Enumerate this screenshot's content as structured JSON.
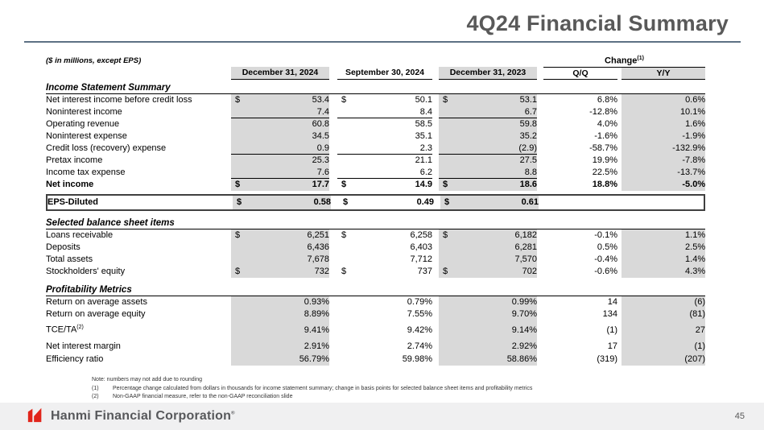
{
  "title": "4Q24 Financial Summary",
  "units_note": "($ in millions, except EPS)",
  "change": {
    "label": "Change",
    "sup": "(1)"
  },
  "columns": [
    "December 31, 2024",
    "September 30, 2024",
    "December 31, 2023",
    "Q/Q",
    "Y/Y"
  ],
  "shade_color": "#d9d9d9",
  "accent_rule_color": "#5d7184",
  "logo_color": "#e1251b",
  "sections": [
    {
      "id": "income",
      "header": "Income Statement Summary",
      "rows": [
        {
          "label": "Net interest income before credit loss",
          "cells": [
            [
              "$",
              "53.4"
            ],
            [
              "$",
              "50.1"
            ],
            [
              "$",
              "53.1"
            ],
            [
              "",
              "6.8%"
            ],
            [
              "",
              "0.6%"
            ]
          ]
        },
        {
          "label": "Noninterest income",
          "sum": true,
          "cells": [
            [
              "",
              "7.4"
            ],
            [
              "",
              "8.4"
            ],
            [
              "",
              "6.7"
            ],
            [
              "",
              "-12.8%"
            ],
            [
              "",
              "10.1%"
            ]
          ]
        },
        {
          "label": "Operating revenue",
          "ind": true,
          "cells": [
            [
              "",
              "60.8"
            ],
            [
              "",
              "58.5"
            ],
            [
              "",
              "59.8"
            ],
            [
              "",
              "4.0%"
            ],
            [
              "",
              "1.6%"
            ]
          ]
        },
        {
          "label": "Noninterest expense",
          "cells": [
            [
              "",
              "34.5"
            ],
            [
              "",
              "35.1"
            ],
            [
              "",
              "35.2"
            ],
            [
              "",
              "-1.6%"
            ],
            [
              "",
              "-1.9%"
            ]
          ]
        },
        {
          "label": "Credit loss (recovery) expense",
          "sum": true,
          "cells": [
            [
              "",
              "0.9"
            ],
            [
              "",
              "2.3"
            ],
            [
              "",
              "(2.9)"
            ],
            [
              "",
              "-58.7%"
            ],
            [
              "",
              "-132.9%"
            ]
          ]
        },
        {
          "label": "Pretax income",
          "ind": true,
          "cells": [
            [
              "",
              "25.3"
            ],
            [
              "",
              "21.1"
            ],
            [
              "",
              "27.5"
            ],
            [
              "",
              "19.9%"
            ],
            [
              "",
              "-7.8%"
            ]
          ]
        },
        {
          "label": "Income tax expense",
          "sum": true,
          "cells": [
            [
              "",
              "7.6"
            ],
            [
              "",
              "6.2"
            ],
            [
              "",
              "8.8"
            ],
            [
              "",
              "22.5%"
            ],
            [
              "",
              "-13.7%"
            ]
          ]
        },
        {
          "label": "Net income",
          "ind": true,
          "b": true,
          "cells": [
            [
              "$",
              "17.7"
            ],
            [
              "$",
              "14.9"
            ],
            [
              "$",
              "18.6"
            ],
            [
              "",
              "18.8%"
            ],
            [
              "",
              "-5.0%"
            ]
          ]
        }
      ]
    },
    {
      "id": "eps",
      "box": true,
      "rows": [
        {
          "label": "EPS-Diluted",
          "b": true,
          "cells": [
            [
              "$",
              "0.58"
            ],
            [
              "$",
              "0.49"
            ],
            [
              "$",
              "0.61"
            ],
            [
              "",
              ""
            ],
            [
              "",
              ""
            ]
          ]
        }
      ]
    },
    {
      "id": "balance",
      "header": "Selected balance sheet items",
      "rows": [
        {
          "label": "Loans receivable",
          "cells": [
            [
              "$",
              "6,251"
            ],
            [
              "$",
              "6,258"
            ],
            [
              "$",
              "6,182"
            ],
            [
              "",
              "-0.1%"
            ],
            [
              "",
              "1.1%"
            ]
          ]
        },
        {
          "label": "Deposits",
          "cells": [
            [
              "",
              "6,436"
            ],
            [
              "",
              "6,403"
            ],
            [
              "",
              "6,281"
            ],
            [
              "",
              "0.5%"
            ],
            [
              "",
              "2.5%"
            ]
          ]
        },
        {
          "label": "Total assets",
          "cells": [
            [
              "",
              "7,678"
            ],
            [
              "",
              "7,712"
            ],
            [
              "",
              "7,570"
            ],
            [
              "",
              "-0.4%"
            ],
            [
              "",
              "1.4%"
            ]
          ]
        },
        {
          "label": "Stockholders' equity",
          "cells": [
            [
              "$",
              "732"
            ],
            [
              "$",
              "737"
            ],
            [
              "$",
              "702"
            ],
            [
              "",
              "-0.6%"
            ],
            [
              "",
              "4.3%"
            ]
          ]
        }
      ]
    },
    {
      "id": "profit",
      "header": "Profitability Metrics",
      "rows": [
        {
          "label": "Return on average assets",
          "cells": [
            [
              "",
              "0.93%"
            ],
            [
              "",
              "0.79%"
            ],
            [
              "",
              "0.99%"
            ],
            [
              "",
              "14"
            ],
            [
              "",
              "(6)"
            ]
          ]
        },
        {
          "label": "Return on average equity",
          "cells": [
            [
              "",
              "8.89%"
            ],
            [
              "",
              "7.55%"
            ],
            [
              "",
              "9.70%"
            ],
            [
              "",
              "134"
            ],
            [
              "",
              "(81)"
            ]
          ]
        },
        {
          "label": "TCE/TA",
          "sup": "(2)",
          "h": 24,
          "cells": [
            [
              "",
              "9.41%"
            ],
            [
              "",
              "9.42%"
            ],
            [
              "",
              "9.14%"
            ],
            [
              "",
              "(1)"
            ],
            [
              "",
              "27"
            ]
          ]
        },
        {
          "label": "Net interest margin",
          "h": 17,
          "cells": [
            [
              "",
              "2.91%"
            ],
            [
              "",
              "2.74%"
            ],
            [
              "",
              "2.92%"
            ],
            [
              "",
              "17"
            ],
            [
              "",
              "(1)"
            ]
          ]
        },
        {
          "label": "Efficiency ratio",
          "cells": [
            [
              "",
              "56.79%"
            ],
            [
              "",
              "59.98%"
            ],
            [
              "",
              "58.86%"
            ],
            [
              "",
              "(319)"
            ],
            [
              "",
              "(207)"
            ]
          ]
        }
      ]
    }
  ],
  "notes": {
    "rounding": "Note: numbers may not add due to rounding",
    "items": [
      {
        "num": "(1)",
        "text": "Percentage change calculated from dollars in thousands for income statement summary; change in basis points for selected balance sheet items and profitability metrics"
      },
      {
        "num": "(2)",
        "text": "Non-GAAP financial measure, refer to the non-GAAP reconciliation slide"
      }
    ]
  },
  "footer": {
    "company": "Hanmi Financial Corporation",
    "trademark": "®",
    "page": "45"
  }
}
